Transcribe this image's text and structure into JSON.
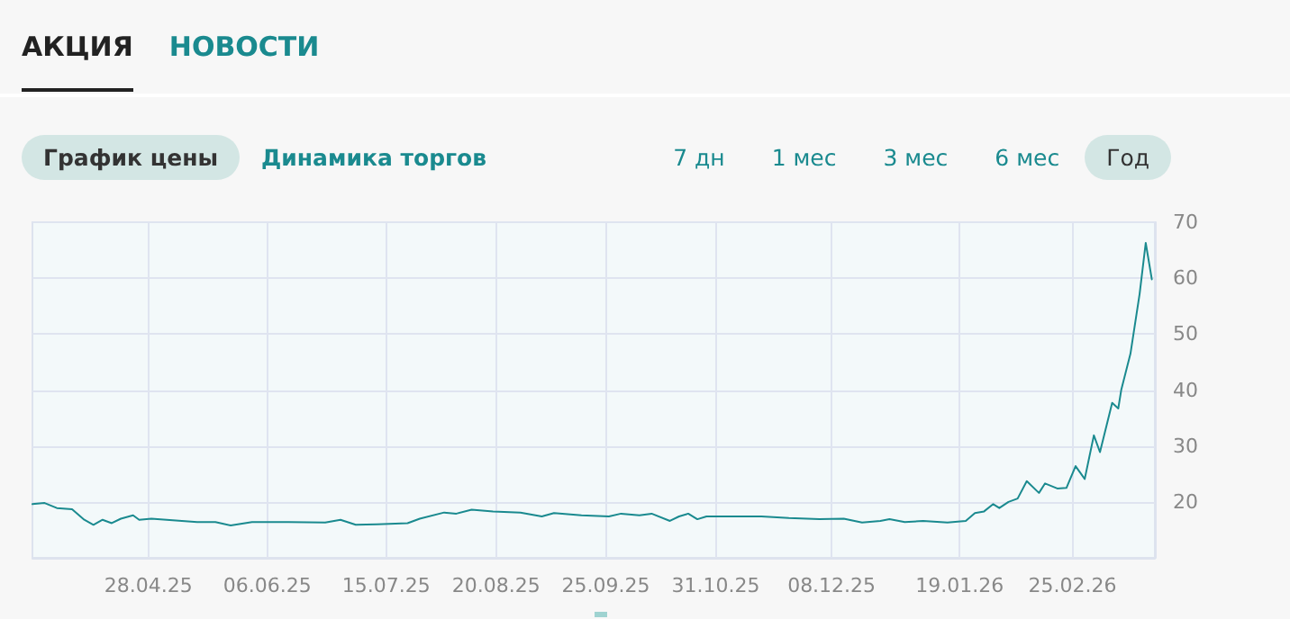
{
  "chart_data": {
    "type": "line",
    "color": "#1a8a8f",
    "marker": "none",
    "line_style": "solid",
    "grid": true,
    "annotations": [
      "АКЦИЯ",
      "НОВОСТИ",
      "График цены",
      "Динамика торгов",
      "7 дн",
      "1 мес",
      "3 мес",
      "6 мес",
      "Год"
    ],
    "xlim": [
      "2025-03-21",
      "2026-03-24"
    ],
    "xticks": [
      {
        "value": "2025-04-28",
        "label": "28.04.25"
      },
      {
        "value": "2025-06-06",
        "label": "06.06.25"
      },
      {
        "value": "2025-07-15",
        "label": "15.07.25"
      },
      {
        "value": "2025-08-20",
        "label": "20.08.25"
      },
      {
        "value": "2025-09-25",
        "label": "25.09.25"
      },
      {
        "value": "2025-10-31",
        "label": "31.10.25"
      },
      {
        "value": "2025-12-08",
        "label": "08.12.25"
      },
      {
        "value": "2026-01-19",
        "label": "19.01.26"
      },
      {
        "value": "2026-02-25",
        "label": "25.02.26"
      }
    ],
    "ylim": [
      10,
      70
    ],
    "yticks": [
      20,
      30,
      40,
      50,
      60,
      70
    ],
    "x": [
      "2025-03-21",
      "2025-03-25",
      "2025-03-29",
      "2025-04-03",
      "2025-04-07",
      "2025-04-10",
      "2025-04-13",
      "2025-04-16",
      "2025-04-19",
      "2025-04-23",
      "2025-04-25",
      "2025-04-29",
      "2025-05-04",
      "2025-05-14",
      "2025-05-20",
      "2025-05-25",
      "2025-06-01",
      "2025-06-13",
      "2025-06-25",
      "2025-06-30",
      "2025-07-05",
      "2025-07-12",
      "2025-07-22",
      "2025-07-26",
      "2025-08-03",
      "2025-08-07",
      "2025-08-12",
      "2025-08-19",
      "2025-08-28",
      "2025-09-04",
      "2025-09-08",
      "2025-09-17",
      "2025-09-26",
      "2025-09-30",
      "2025-10-06",
      "2025-10-10",
      "2025-10-16",
      "2025-10-19",
      "2025-10-22",
      "2025-10-25",
      "2025-10-28",
      "2025-11-03",
      "2025-11-15",
      "2025-11-24",
      "2025-12-04",
      "2025-12-12",
      "2025-12-18",
      "2025-12-24",
      "2025-12-27",
      "2026-01-01",
      "2026-01-07",
      "2026-01-15",
      "2026-01-21",
      "2026-01-24",
      "2026-01-27",
      "2026-01-30",
      "2026-02-01",
      "2026-02-04",
      "2026-02-07",
      "2026-02-10",
      "2026-02-14",
      "2026-02-16",
      "2026-02-20",
      "2026-02-23",
      "2026-02-26",
      "2026-03-01",
      "2026-03-04",
      "2026-03-06",
      "2026-03-10",
      "2026-03-12",
      "2026-03-13",
      "2026-03-16",
      "2026-03-19",
      "2026-03-21",
      "2026-03-23"
    ],
    "values": [
      19.6,
      19.8,
      18.9,
      18.7,
      16.8,
      15.9,
      16.8,
      16.2,
      17.0,
      17.6,
      16.8,
      17.0,
      16.8,
      16.4,
      16.4,
      15.8,
      16.4,
      16.4,
      16.3,
      16.8,
      15.9,
      16.0,
      16.2,
      17.0,
      18.1,
      17.9,
      18.6,
      18.3,
      18.1,
      17.4,
      18.0,
      17.6,
      17.4,
      17.9,
      17.6,
      17.9,
      16.6,
      17.4,
      17.9,
      16.9,
      17.4,
      17.4,
      17.4,
      17.1,
      16.9,
      17.0,
      16.3,
      16.6,
      16.9,
      16.4,
      16.6,
      16.3,
      16.6,
      18.0,
      18.3,
      19.6,
      18.9,
      20.0,
      20.6,
      23.7,
      21.6,
      23.3,
      22.4,
      22.5,
      26.4,
      24.1,
      31.9,
      28.9,
      37.7,
      36.7,
      40.1,
      46.5,
      57.2,
      66.3,
      59.8
    ]
  }
}
